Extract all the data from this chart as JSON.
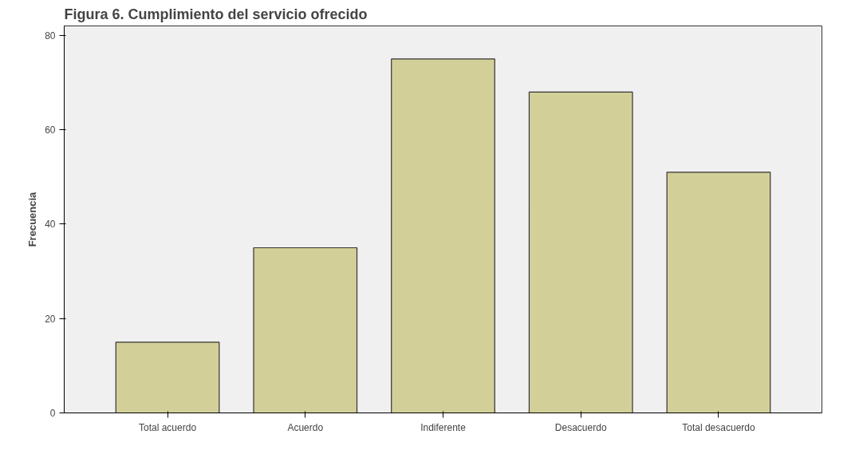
{
  "chart_data": {
    "type": "bar",
    "title": "Figura 6. Cumplimiento del servicio ofrecido",
    "ylabel": "Frecuencia",
    "categories": [
      "Total acuerdo",
      "Acuerdo",
      "Indiferente",
      "Desacuerdo",
      "Total desacuerdo"
    ],
    "values": [
      15,
      35,
      75,
      68,
      51
    ],
    "color": "#d3cf98",
    "ylim": [
      0,
      82
    ],
    "yticks": [
      0,
      20,
      40,
      60,
      80
    ],
    "grid": false
  }
}
